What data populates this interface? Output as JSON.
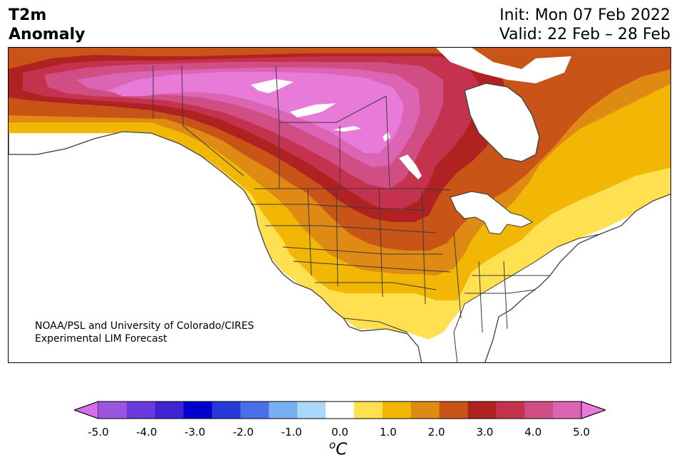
{
  "header": {
    "title_line1": "T2m",
    "title_line2": "Anomaly",
    "init": "Init: Mon 07 Feb 2022",
    "valid": "Valid: 22 Feb – 28 Feb"
  },
  "credit": {
    "line1": "NOAA/PSL and University of Colorado/CIRES",
    "line2": "Experimental LIM Forecast"
  },
  "colorbar": {
    "levels": [
      -5.0,
      -4.5,
      -4.0,
      -3.5,
      -3.0,
      -2.5,
      -2.0,
      -1.5,
      -1.0,
      -0.5,
      0.5,
      1.0,
      1.5,
      2.0,
      2.5,
      3.0,
      3.5,
      4.0,
      4.5,
      5.0
    ],
    "colors": [
      "#d46ee8",
      "#9b55e0",
      "#6a3bdc",
      "#3f22d0",
      "#0000cc",
      "#2638d8",
      "#4a6ee6",
      "#77aef2",
      "#aad8fa",
      "#ffffff",
      "#ffe050",
      "#f2b705",
      "#df8a12",
      "#c85418",
      "#b02222",
      "#c4324e",
      "#d14e84",
      "#dc64b4",
      "#e87ad8"
    ],
    "ticks": [
      "-5.0",
      "-4.0",
      "-3.0",
      "-2.0",
      "-1.0",
      "0.0",
      "1.0",
      "2.0",
      "3.0",
      "4.0",
      "5.0"
    ],
    "unit_base": "C",
    "unit_sup": "o"
  },
  "map": {
    "land_color": "#ffffff",
    "border_color": "#333333",
    "anomaly_colors": {
      "c1_0": "#ffe050",
      "c1_5": "#f2b705",
      "c2_0": "#df8a12",
      "c2_5": "#c85418",
      "c3_0": "#b02222",
      "c3_5": "#c4324e",
      "c4_0": "#d14e84",
      "c4_5": "#dc64b4",
      "c5_0": "#e87ad8"
    }
  }
}
